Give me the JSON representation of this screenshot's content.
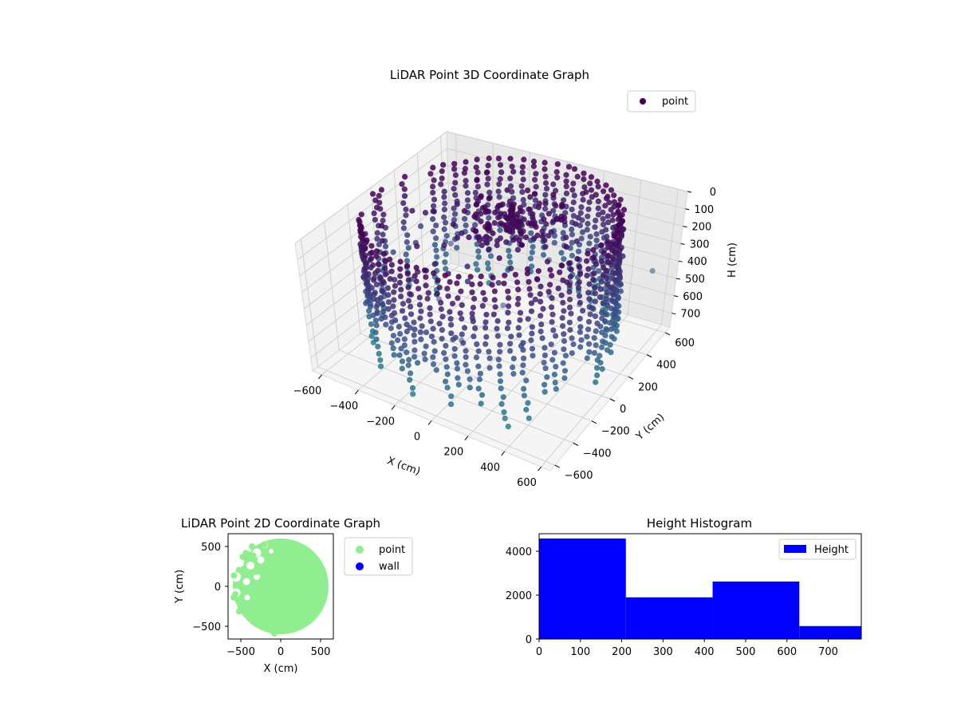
{
  "chart_data": [
    {
      "type": "scatter3d",
      "title": "LiDAR Point 3D Coordinate Graph",
      "xlabel": "X (cm)",
      "ylabel": "Y (cm)",
      "zlabel": "H (cm)",
      "xlim": [
        -650,
        650
      ],
      "ylim": [
        -650,
        650
      ],
      "zlim": [
        780,
        0
      ],
      "x_ticks": [
        -600,
        -400,
        -200,
        0,
        200,
        400,
        600
      ],
      "y_ticks": [
        -600,
        -400,
        -200,
        0,
        200,
        400,
        600
      ],
      "z_ticks": [
        0,
        100,
        200,
        300,
        400,
        500,
        600,
        700
      ],
      "z_inverted": true,
      "colormap": "viridis",
      "legend": {
        "entries": [
          "point"
        ],
        "position": "top-right"
      },
      "grid": true,
      "shape": "ring of wall points, radius ~600 cm, heights 0-780 cm, densest near top"
    },
    {
      "type": "scatter",
      "title": "LiDAR Point 2D Coordinate Graph",
      "xlabel": "X (cm)",
      "ylabel": "Y (cm)",
      "xlim": [
        -660,
        660
      ],
      "ylim": [
        -660,
        660
      ],
      "x_ticks": [
        -500,
        0,
        500
      ],
      "y_ticks": [
        -500,
        0,
        500
      ],
      "series": [
        {
          "name": "point",
          "color": "#90ee90",
          "region": "disc radius ~600 cm with voids on the left side"
        },
        {
          "name": "wall",
          "color": "#0000ff",
          "values": []
        }
      ],
      "legend": {
        "entries": [
          "point",
          "wall"
        ],
        "position": "outside right"
      }
    },
    {
      "type": "bar",
      "title": "Height Histogram",
      "legend": {
        "entries": [
          "Height"
        ],
        "position": "top-right"
      },
      "bin_edges": [
        0,
        210,
        420,
        630,
        840
      ],
      "values": [
        4580,
        1900,
        2620,
        590
      ],
      "bar_color": "#0000ff",
      "xlim": [
        0,
        780
      ],
      "ylim": [
        0,
        4800
      ],
      "x_ticks": [
        0,
        100,
        200,
        300,
        400,
        500,
        600,
        700
      ],
      "y_ticks": [
        0,
        2000,
        4000
      ]
    }
  ],
  "colors": {
    "viridis_dark": "#440154",
    "viridis_mid": "#3b528b",
    "viridis_teal": "#21918c",
    "point_green": "#90ee90",
    "wall_blue": "#0000ff"
  }
}
